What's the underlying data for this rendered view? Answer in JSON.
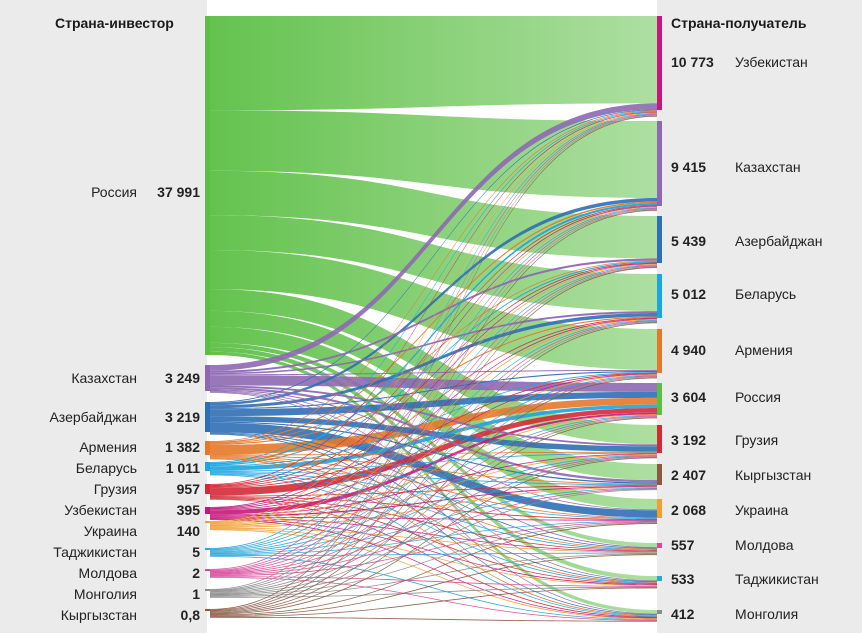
{
  "chart_data": {
    "type": "sankey",
    "left_header": "Страна-инвестор",
    "right_header": "Страна-получатель",
    "sources": [
      {
        "name": "Россия",
        "value_label": "37 991",
        "value": 37991,
        "color": "#5cbf45"
      },
      {
        "name": "Казахстан",
        "value_label": "3 249",
        "value": 3249,
        "color": "#8e69b2"
      },
      {
        "name": "Азербайджан",
        "value_label": "3 219",
        "value": 3219,
        "color": "#2f6fb4"
      },
      {
        "name": "Армения",
        "value_label": "1 382",
        "value": 1382,
        "color": "#e5782a"
      },
      {
        "name": "Беларусь",
        "value_label": "1 011",
        "value": 1011,
        "color": "#1ca6df"
      },
      {
        "name": "Грузия",
        "value_label": "957",
        "value": 957,
        "color": "#d42a36"
      },
      {
        "name": "Узбекистан",
        "value_label": "395",
        "value": 395,
        "color": "#c7177c"
      },
      {
        "name": "Украина",
        "value_label": "140",
        "value": 140,
        "color": "#f0a030"
      },
      {
        "name": "Таджикистан",
        "value_label": "5",
        "value": 5,
        "color": "#2aa7d9"
      },
      {
        "name": "Молдова",
        "value_label": "2",
        "value": 2,
        "color": "#d8499a"
      },
      {
        "name": "Монголия",
        "value_label": "1",
        "value": 1,
        "color": "#8c8c8c"
      },
      {
        "name": "Кыргызстан",
        "value_label": "0,8",
        "value": 0.8,
        "color": "#8a5a44"
      }
    ],
    "targets": [
      {
        "name": "Узбекистан",
        "value_label": "10 773",
        "value": 10773,
        "color": "#c7177c"
      },
      {
        "name": "Казахстан",
        "value_label": "9 415",
        "value": 9415,
        "color": "#8e69b2"
      },
      {
        "name": "Азербайджан",
        "value_label": "5 439",
        "value": 5439,
        "color": "#2f6fb4"
      },
      {
        "name": "Беларусь",
        "value_label": "5 012",
        "value": 5012,
        "color": "#1ca6df"
      },
      {
        "name": "Армения",
        "value_label": "4 940",
        "value": 4940,
        "color": "#e5782a"
      },
      {
        "name": "Россия",
        "value_label": "3 604",
        "value": 3604,
        "color": "#5cbf45"
      },
      {
        "name": "Грузия",
        "value_label": "3 192",
        "value": 3192,
        "color": "#d42a36"
      },
      {
        "name": "Кыргызстан",
        "value_label": "2 407",
        "value": 2407,
        "color": "#8a5a44"
      },
      {
        "name": "Украина",
        "value_label": "2 068",
        "value": 2068,
        "color": "#f0a030"
      },
      {
        "name": "Молдова",
        "value_label": "557",
        "value": 557,
        "color": "#d8499a"
      },
      {
        "name": "Таджикистан",
        "value_label": "533",
        "value": 533,
        "color": "#2aa7d9"
      },
      {
        "name": "Монголия",
        "value_label": "412",
        "value": 412,
        "color": "#8c8c8c"
      }
    ]
  }
}
